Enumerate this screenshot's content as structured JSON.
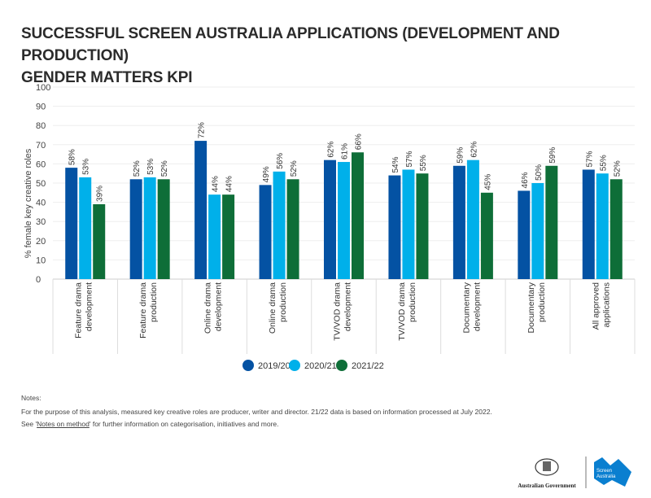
{
  "title": {
    "line1": "SUCCESSFUL SCREEN AUSTRALIA APPLICATIONS (DEVELOPMENT AND PRODUCTION)",
    "line2": "GENDER MATTERS KPI"
  },
  "chart_data": {
    "type": "bar",
    "title": "Successful Screen Australia applications (development and production) Gender Matters KPI",
    "ylabel": "% female key creative roles",
    "xlabel": "",
    "ylim": [
      0,
      100
    ],
    "yticks": [
      0,
      10,
      20,
      30,
      40,
      50,
      60,
      70,
      80,
      90,
      100
    ],
    "grid": true,
    "legend": "bottom",
    "categories": [
      [
        "Feature drama",
        "development"
      ],
      [
        "Feature drama",
        "production"
      ],
      [
        "Online drama",
        "development"
      ],
      [
        "Online drama",
        "production"
      ],
      [
        "TV/VOD drama",
        "development"
      ],
      [
        "TV/VOD drama",
        "production"
      ],
      [
        "Documentary",
        "development"
      ],
      [
        "Documentary",
        "production"
      ],
      [
        "All approved",
        "applications"
      ]
    ],
    "series": [
      {
        "name": "2019/20",
        "color": "#0452a3",
        "values": [
          58,
          52,
          72,
          49,
          62,
          54,
          59,
          46,
          57
        ]
      },
      {
        "name": "2020/21",
        "color": "#00b0ea",
        "values": [
          53,
          53,
          44,
          56,
          61,
          57,
          62,
          50,
          55
        ]
      },
      {
        "name": "2021/22",
        "color": "#0e6e38",
        "values": [
          39,
          52,
          44,
          52,
          66,
          55,
          45,
          59,
          52
        ]
      }
    ]
  },
  "notes": {
    "heading": "Notes:",
    "line1": "For the purpose of this analysis, measured key creative roles are producer, writer and director. 21/22 data is based on information processed at July 2022.",
    "line2_pre": "See '",
    "line2_link": "Notes on method",
    "line2_post": "' for further information on categorisation, initiatives and more."
  },
  "logos": {
    "gov": "Australian Government",
    "screen1": "Screen",
    "screen2": "Australia"
  }
}
